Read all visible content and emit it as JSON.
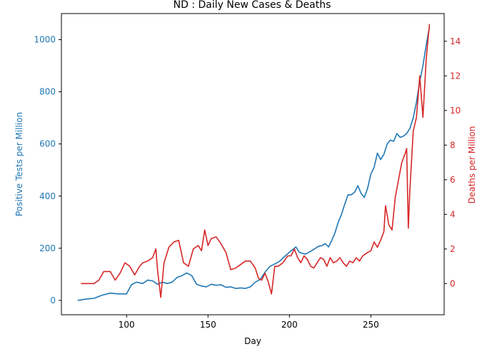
{
  "chart_data": {
    "type": "line",
    "title": "ND : Daily New Cases & Deaths",
    "xlabel": "Day",
    "ylabel_left": "Positive Tests per Million",
    "ylabel_right": "Deaths per Million",
    "xlim": [
      60,
      295
    ],
    "ylim_left": [
      -55,
      1100
    ],
    "ylim_right": [
      -1.8,
      15.6
    ],
    "xticks": [
      100,
      150,
      200,
      250
    ],
    "yticks_left": [
      0,
      200,
      400,
      600,
      800,
      1000
    ],
    "yticks_right": [
      0,
      2,
      4,
      6,
      8,
      10,
      12,
      14
    ],
    "grid": false,
    "colors": {
      "left": "#1f77b4",
      "right": "#d62728"
    },
    "series": [
      {
        "axis": "left",
        "color": "#1f77b4",
        "x": [
          70,
          75,
          80,
          85,
          90,
          95,
          100,
          103,
          106,
          110,
          113,
          116,
          119,
          122,
          125,
          128,
          131,
          134,
          137,
          140,
          143,
          146,
          149,
          152,
          155,
          158,
          161,
          164,
          167,
          170,
          173,
          176,
          179,
          182,
          185,
          188,
          191,
          194,
          197,
          200,
          202,
          204,
          206,
          208,
          210,
          212,
          214,
          216,
          218,
          220,
          222,
          224,
          226,
          228,
          230,
          232,
          234,
          236,
          238,
          240,
          242,
          244,
          246,
          248,
          250,
          252,
          254,
          256,
          258,
          260,
          262,
          264,
          266,
          268,
          270,
          272,
          274,
          276,
          278,
          280,
          282,
          284,
          286
        ],
        "y": [
          0,
          5,
          8,
          20,
          28,
          25,
          25,
          60,
          70,
          65,
          78,
          75,
          62,
          70,
          65,
          70,
          88,
          95,
          105,
          95,
          62,
          55,
          52,
          62,
          58,
          60,
          50,
          52,
          46,
          48,
          46,
          52,
          70,
          80,
          108,
          130,
          140,
          150,
          168,
          185,
          195,
          205,
          185,
          180,
          178,
          185,
          192,
          200,
          208,
          210,
          218,
          205,
          230,
          260,
          300,
          330,
          370,
          405,
          405,
          415,
          440,
          410,
          395,
          430,
          485,
          510,
          565,
          540,
          560,
          600,
          615,
          610,
          640,
          625,
          630,
          640,
          660,
          700,
          760,
          840,
          900,
          980,
          1050
        ]
      },
      {
        "axis": "right",
        "color": "#d62728",
        "x": [
          72,
          80,
          83,
          86,
          90,
          93,
          96,
          99,
          102,
          105,
          108,
          110,
          113,
          116,
          118,
          119,
          121,
          123,
          126,
          129,
          132,
          135,
          138,
          141,
          144,
          146,
          148,
          150,
          152,
          155,
          158,
          161,
          164,
          167,
          170,
          173,
          176,
          179,
          181,
          183,
          185,
          187,
          189,
          191,
          193,
          196,
          199,
          201,
          203,
          205,
          207,
          209,
          211,
          213,
          215,
          217,
          219,
          221,
          223,
          225,
          227,
          229,
          231,
          233,
          235,
          237,
          239,
          241,
          243,
          245,
          248,
          250,
          252,
          254,
          256,
          258,
          259,
          261,
          263,
          265,
          267,
          269,
          271,
          272,
          273,
          274,
          276,
          278,
          280,
          282,
          284,
          286
        ],
        "y": [
          0,
          0,
          0.2,
          0.7,
          0.7,
          0.2,
          0.6,
          1.2,
          1.0,
          0.5,
          1.0,
          1.2,
          1.3,
          1.5,
          2.0,
          0.8,
          -0.8,
          1.2,
          2.1,
          2.4,
          2.5,
          1.2,
          1.0,
          2.0,
          2.2,
          1.9,
          3.1,
          2.2,
          2.6,
          2.7,
          2.3,
          1.8,
          0.8,
          0.9,
          1.1,
          1.3,
          1.3,
          0.9,
          0.3,
          0.2,
          0.6,
          0.1,
          -0.6,
          1.0,
          1.0,
          1.2,
          1.6,
          1.6,
          2.0,
          1.5,
          1.2,
          1.6,
          1.4,
          1.0,
          0.9,
          1.2,
          1.5,
          1.4,
          1.0,
          1.5,
          1.2,
          1.3,
          1.5,
          1.2,
          1.0,
          1.3,
          1.2,
          1.5,
          1.3,
          1.6,
          1.8,
          1.9,
          2.4,
          2.1,
          2.5,
          3.0,
          4.5,
          3.4,
          3.1,
          5.0,
          6.0,
          7.0,
          7.5,
          7.8,
          3.2,
          5.5,
          8.8,
          9.6,
          12.0,
          9.6,
          13.0,
          15.0
        ]
      }
    ]
  }
}
